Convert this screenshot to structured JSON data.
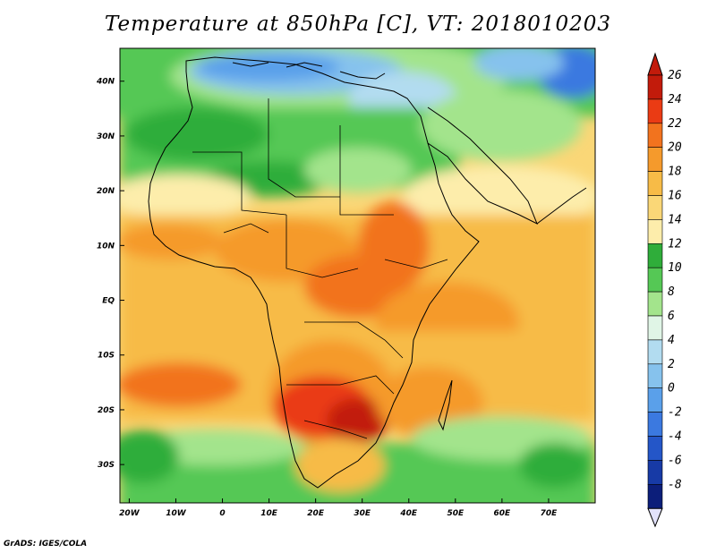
{
  "title": "Temperature at 850hPa [C], VT: 2018010203",
  "credit": "GrADS: IGES/COLA",
  "map": {
    "lon_range": [
      -22,
      80
    ],
    "lat_range": [
      -37,
      46
    ],
    "x_ticks": [
      "20W",
      "10W",
      "0",
      "10E",
      "20E",
      "30E",
      "40E",
      "50E",
      "60E",
      "70E"
    ],
    "x_tick_values": [
      -20,
      -10,
      0,
      10,
      20,
      30,
      40,
      50,
      60,
      70
    ],
    "y_ticks": [
      "40N",
      "30N",
      "20N",
      "10N",
      "EQ",
      "10S",
      "20S",
      "30S"
    ],
    "y_tick_values": [
      40,
      30,
      20,
      10,
      0,
      -10,
      -20,
      -30
    ]
  },
  "colorbar": {
    "labels": [
      "26",
      "24",
      "22",
      "20",
      "18",
      "16",
      "14",
      "12",
      "10",
      "8",
      "6",
      "4",
      "2",
      "0",
      "-2",
      "-4",
      "-6",
      "-8"
    ],
    "colors": [
      "#c21b0b",
      "#ea3b14",
      "#f2731e",
      "#f59a2c",
      "#f7bb47",
      "#fad777",
      "#fdedab",
      "#2fad3a",
      "#55c855",
      "#a3e48c",
      "#e0f5e6",
      "#b2dcf0",
      "#86c2ed",
      "#5aa0ea",
      "#3b79e0",
      "#2456c8",
      "#173aa6",
      "#0c1e7a"
    ],
    "top_arrow_color": "#c21b0b",
    "bottom_arrow_color": "#e2e2fb"
  }
}
